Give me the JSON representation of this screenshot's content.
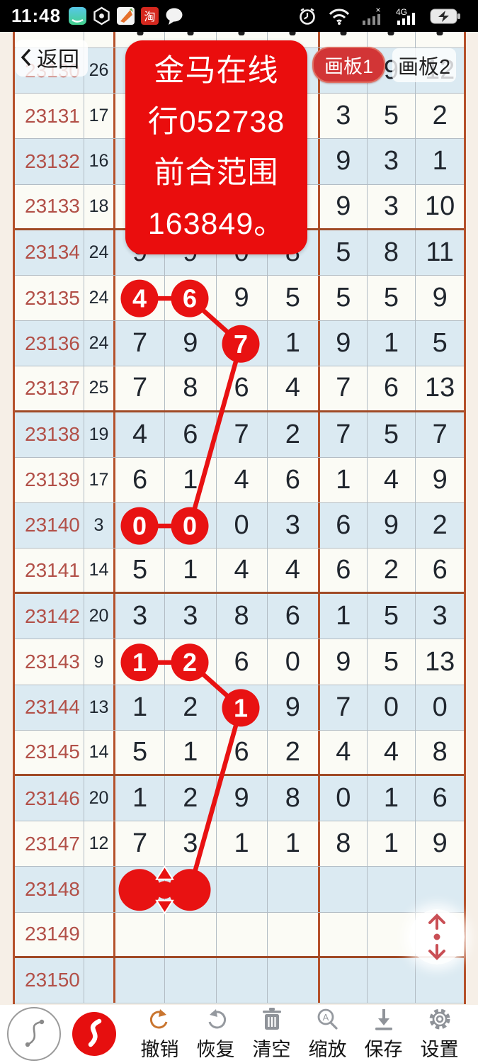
{
  "status_bar": {
    "time": "11:48",
    "network_label": "4G",
    "left_icons": [
      "messenger-app-icon",
      "scanner-hex-icon",
      "photos-app-icon",
      "taobao-app-icon",
      "chat-bubble-icon"
    ],
    "right_icons": [
      "alarm-icon",
      "wifi-icon",
      "signal-no-sim-icon",
      "signal-4g-icon",
      "battery-charging-icon"
    ]
  },
  "header": {
    "back_label": "返回",
    "tabs": [
      {
        "label": "画板1",
        "active": true
      },
      {
        "label": "画板2",
        "active": false
      }
    ]
  },
  "popup": {
    "lines": [
      "金马在线",
      "行052738",
      "前合范围",
      "163849。"
    ]
  },
  "table": {
    "rows": [
      {
        "id": "23130",
        "sum": "26",
        "cells": [
          "",
          "",
          "",
          "",
          "",
          "9",
          "12"
        ]
      },
      {
        "id": "23131",
        "sum": "17",
        "cells": [
          "",
          "",
          "",
          "",
          "3",
          "5",
          "2"
        ]
      },
      {
        "id": "23132",
        "sum": "16",
        "cells": [
          "",
          "",
          "",
          "",
          "9",
          "3",
          "1"
        ]
      },
      {
        "id": "23133",
        "sum": "18",
        "cells": [
          "",
          "",
          "",
          "",
          "9",
          "3",
          "10"
        ]
      },
      {
        "id": "23134",
        "sum": "24",
        "cells": [
          "9",
          "9",
          "0",
          "8",
          "5",
          "8",
          "11"
        ]
      },
      {
        "id": "23135",
        "sum": "24",
        "cells": [
          "4",
          "6",
          "9",
          "5",
          "5",
          "5",
          "9"
        ]
      },
      {
        "id": "23136",
        "sum": "24",
        "cells": [
          "7",
          "9",
          "7",
          "1",
          "9",
          "1",
          "5"
        ]
      },
      {
        "id": "23137",
        "sum": "25",
        "cells": [
          "7",
          "8",
          "6",
          "4",
          "7",
          "6",
          "13"
        ]
      },
      {
        "id": "23138",
        "sum": "19",
        "cells": [
          "4",
          "6",
          "7",
          "2",
          "7",
          "5",
          "7"
        ]
      },
      {
        "id": "23139",
        "sum": "17",
        "cells": [
          "6",
          "1",
          "4",
          "6",
          "1",
          "4",
          "9"
        ]
      },
      {
        "id": "23140",
        "sum": "3",
        "cells": [
          "0",
          "0",
          "0",
          "3",
          "6",
          "9",
          "2"
        ]
      },
      {
        "id": "23141",
        "sum": "14",
        "cells": [
          "5",
          "1",
          "4",
          "4",
          "6",
          "2",
          "6"
        ]
      },
      {
        "id": "23142",
        "sum": "20",
        "cells": [
          "3",
          "3",
          "8",
          "6",
          "1",
          "5",
          "3"
        ]
      },
      {
        "id": "23143",
        "sum": "9",
        "cells": [
          "1",
          "2",
          "6",
          "0",
          "9",
          "5",
          "13"
        ]
      },
      {
        "id": "23144",
        "sum": "13",
        "cells": [
          "1",
          "2",
          "1",
          "9",
          "7",
          "0",
          "0"
        ]
      },
      {
        "id": "23145",
        "sum": "14",
        "cells": [
          "5",
          "1",
          "6",
          "2",
          "4",
          "4",
          "8"
        ]
      },
      {
        "id": "23146",
        "sum": "20",
        "cells": [
          "1",
          "2",
          "9",
          "8",
          "0",
          "1",
          "6"
        ]
      },
      {
        "id": "23147",
        "sum": "12",
        "cells": [
          "7",
          "3",
          "1",
          "1",
          "8",
          "1",
          "9"
        ]
      },
      {
        "id": "23148",
        "sum": "",
        "cells": [
          "",
          "",
          "",
          "",
          "",
          "",
          ""
        ]
      },
      {
        "id": "23149",
        "sum": "",
        "cells": [
          "",
          "",
          "",
          "",
          "",
          "",
          ""
        ]
      },
      {
        "id": "23150",
        "sum": "",
        "cells": [
          "",
          "",
          "",
          "",
          "",
          "",
          ""
        ]
      }
    ]
  },
  "overlay": {
    "circles": [
      {
        "row": 5,
        "col": 0,
        "label": "4"
      },
      {
        "row": 5,
        "col": 1,
        "label": "6"
      },
      {
        "row": 6,
        "col": 2,
        "label": "7"
      },
      {
        "row": 10,
        "col": 0,
        "label": "0"
      },
      {
        "row": 10,
        "col": 1,
        "label": "0"
      },
      {
        "row": 13,
        "col": 0,
        "label": "1"
      },
      {
        "row": 13,
        "col": 1,
        "label": "2"
      },
      {
        "row": 14,
        "col": 2,
        "label": "1"
      }
    ],
    "segments": [
      [
        5,
        0,
        5,
        1
      ],
      [
        5,
        1,
        6,
        2
      ],
      [
        6,
        2,
        10,
        1
      ],
      [
        10,
        0,
        10,
        1
      ],
      [
        13,
        0,
        13,
        1
      ],
      [
        13,
        1,
        14,
        2
      ],
      [
        14,
        2,
        18,
        1
      ]
    ],
    "handle": {
      "row": 18,
      "cols": [
        0,
        1
      ]
    }
  },
  "toolbar": {
    "tools": [
      "path-tool",
      "draw-tool"
    ],
    "items": [
      {
        "icon": "undo-icon",
        "label": "撤销"
      },
      {
        "icon": "redo-icon",
        "label": "恢复"
      },
      {
        "icon": "trash-icon",
        "label": "清空"
      },
      {
        "icon": "zoom-icon",
        "label": "缩放"
      },
      {
        "icon": "save-icon",
        "label": "保存"
      },
      {
        "icon": "gear-icon",
        "label": "设置"
      }
    ]
  },
  "colors": {
    "accent_red": "#e81212",
    "popup_red": "#ea0d0d",
    "grid_major_border": "#b5512b",
    "row_alt_blue": "#dbeaf2",
    "issue_number": "#b25048"
  }
}
